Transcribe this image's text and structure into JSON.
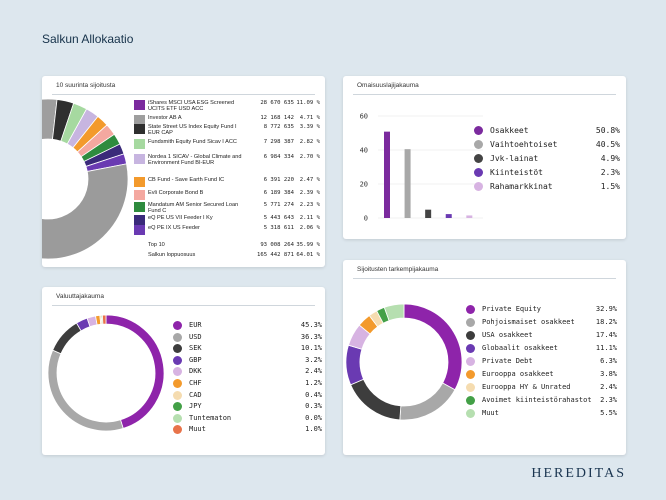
{
  "page": {
    "title": "Salkun Allokaatio",
    "brand": "HEREDITAS"
  },
  "top10": {
    "title": "10 suurinta sijoitusta",
    "rows": [
      {
        "name": "iShares MSCI USA ESG Screened UCITS ETF USD ACC",
        "value": "28 670 635",
        "pct": "11.09 %",
        "color": "#7b2a9e"
      },
      {
        "name": "Investor AB A",
        "value": "12 168 142",
        "pct": "4.71 %",
        "color": "#9e9e9e"
      },
      {
        "name": "State Street US Index Equity Fund I EUR CAP",
        "value": "8 772 635",
        "pct": "3.39 %",
        "color": "#2f2f2f"
      },
      {
        "name": "Fundsmith Equity Fund Sicav I ACC",
        "value": "7 298 387",
        "pct": "2.82 %",
        "color": "#a6d9a0"
      },
      {
        "name": "Nordea 1 SICAV - Global Climate and Environment Fund BI-EUR",
        "value": "6 984 334",
        "pct": "2.70 %",
        "color": "#c7b5e0"
      },
      {
        "name": "CB Fund - Save Earth Fund IC",
        "value": "6 391 220",
        "pct": "2.47 %",
        "color": "#f39a2c"
      },
      {
        "name": "Evli Corporate Bond B",
        "value": "6 189 384",
        "pct": "2.39 %",
        "color": "#f4a8a0"
      },
      {
        "name": "Mandatum AM Senior Secured Loan Fund C",
        "value": "5 771 274",
        "pct": "2.23 %",
        "color": "#2e8b3e"
      },
      {
        "name": "eQ PE US VII Feeder I Ky",
        "value": "5 443 643",
        "pct": "2.11 %",
        "color": "#3a2a7a"
      },
      {
        "name": "eQ PE IX US Feeder",
        "value": "5 318 611",
        "pct": "2.06 %",
        "color": "#6a3ab2"
      }
    ],
    "total_top10": {
      "label": "Top 10",
      "value": "93 008 264",
      "pct": "35.99 %"
    },
    "total_portfolio": {
      "label": "Salkun loppuosuus",
      "value": "165 442 871",
      "pct": "64.01 %"
    }
  },
  "asset_allocation": {
    "title": "Omaisuuslajijakauma",
    "chart_data": {
      "type": "bar",
      "categories": [
        "Osakkeet",
        "Vaihtoehtoiset",
        "Jvk-lainat",
        "Kiinteistöt",
        "Rahamarkkinat"
      ],
      "values": [
        50.8,
        40.5,
        4.9,
        2.3,
        1.5
      ],
      "ylim": [
        0,
        60
      ],
      "yticks": [
        "0",
        "20",
        "40",
        "60"
      ]
    },
    "legend": [
      {
        "name": "Osakkeet",
        "pct": "50.8%",
        "color": "#7b2a9e"
      },
      {
        "name": "Vaihtoehtoiset",
        "pct": "40.5%",
        "color": "#a8a8a8"
      },
      {
        "name": "Jvk-lainat",
        "pct": "4.9%",
        "color": "#444444"
      },
      {
        "name": "Kiinteistöt",
        "pct": "2.3%",
        "color": "#6a3ab2"
      },
      {
        "name": "Rahamarkkinat",
        "pct": "1.5%",
        "color": "#d7b3e2"
      }
    ]
  },
  "currency": {
    "title": "Valuuttajakauma",
    "chart_data": {
      "type": "pie",
      "categories": [
        "EUR",
        "USD",
        "SEK",
        "GBP",
        "DKK",
        "CHF",
        "CAD",
        "JPY",
        "Tuntematon",
        "Muut"
      ],
      "values": [
        45.3,
        36.3,
        10.1,
        3.2,
        2.4,
        1.2,
        0.4,
        0.3,
        0.0,
        1.0
      ]
    },
    "legend": [
      {
        "name": "EUR",
        "pct": "45.3%",
        "color": "#8e24aa"
      },
      {
        "name": "USD",
        "pct": "36.3%",
        "color": "#a8a8a8"
      },
      {
        "name": "SEK",
        "pct": "10.1%",
        "color": "#3d3d3d"
      },
      {
        "name": "GBP",
        "pct": "3.2%",
        "color": "#6a3ab2"
      },
      {
        "name": "DKK",
        "pct": "2.4%",
        "color": "#d7b3e2"
      },
      {
        "name": "CHF",
        "pct": "1.2%",
        "color": "#f39a2c"
      },
      {
        "name": "CAD",
        "pct": "0.4%",
        "color": "#f5dcb0"
      },
      {
        "name": "JPY",
        "pct": "0.3%",
        "color": "#43a047"
      },
      {
        "name": "Tuntematon",
        "pct": "0.0%",
        "color": "#b6dfb0"
      },
      {
        "name": "Muut",
        "pct": "1.0%",
        "color": "#e8734a"
      }
    ]
  },
  "detail": {
    "title": "Sijoitusten tarkempijakauma",
    "chart_data": {
      "type": "pie",
      "categories": [
        "Private Equity",
        "Pohjoismaiset osakkeet",
        "USA osakkeet",
        "Globaalit osakkeet",
        "Private Debt",
        "Eurooppa osakkeet",
        "Eurooppa HY & Unrated",
        "Avoimet kiinteistörahastot",
        "Muut"
      ],
      "values": [
        32.9,
        18.2,
        17.4,
        11.1,
        6.3,
        3.8,
        2.4,
        2.3,
        5.5
      ]
    },
    "legend": [
      {
        "name": "Private Equity",
        "pct": "32.9%",
        "color": "#8e24aa"
      },
      {
        "name": "Pohjoismaiset osakkeet",
        "pct": "18.2%",
        "color": "#a8a8a8"
      },
      {
        "name": "USA osakkeet",
        "pct": "17.4%",
        "color": "#3d3d3d"
      },
      {
        "name": "Globaalit osakkeet",
        "pct": "11.1%",
        "color": "#6a3ab2"
      },
      {
        "name": "Private Debt",
        "pct": "6.3%",
        "color": "#d7b3e2"
      },
      {
        "name": "Eurooppa osakkeet",
        "pct": "3.8%",
        "color": "#f39a2c"
      },
      {
        "name": "Eurooppa HY & Unrated",
        "pct": "2.4%",
        "color": "#f5dcb0"
      },
      {
        "name": "Avoimet kiinteistörahastot",
        "pct": "2.3%",
        "color": "#43a047"
      },
      {
        "name": "Muut",
        "pct": "5.5%",
        "color": "#b6dfb0"
      }
    ]
  }
}
